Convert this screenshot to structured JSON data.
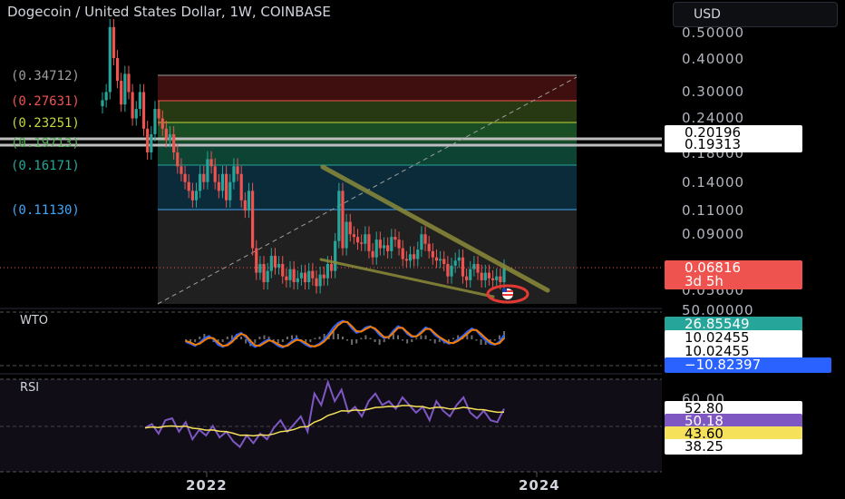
{
  "header": {
    "title": "Dogecoin / United States Dollar, 1W, COINBASE",
    "currency_label": "USD"
  },
  "colors": {
    "bull": "#26a69a",
    "bear": "#ef5350",
    "wto_fast": "#2962ff",
    "wto_slow": "#f57c00",
    "rsi": "#7e57c2",
    "rsi_ma": "#f5e15a",
    "trend": "#8b8b3a"
  },
  "main_axis": {
    "ticks": [
      "0.50000",
      "0.40000",
      "0.30000",
      "0.24000",
      "0.18000",
      "0.14000",
      "0.11000",
      "0.09000",
      "0.05600"
    ],
    "scale": "log",
    "price_boxes": {
      "p1": "0.20196",
      "p2": "0.19313",
      "last_price": "0.06816",
      "countdown": "3d 5h"
    }
  },
  "fib_labels": [
    "(0.34712)",
    "(0.27631)",
    "(0.23251)",
    "(0.19713)",
    "(0.16171)",
    "(0.11130)"
  ],
  "wto": {
    "label": "WTO",
    "ticks": [
      "50.00000"
    ],
    "values": [
      "26.85549",
      "10.02455",
      "10.02455",
      "−10.82397"
    ]
  },
  "rsi": {
    "label": "RSI",
    "ticks": [
      "60.00"
    ],
    "values": [
      "52.80",
      "50.18",
      "43.60",
      "38.25"
    ]
  },
  "x_axis": {
    "labels": [
      "2022",
      "2024"
    ]
  },
  "chart_data": [
    {
      "type": "candlestick",
      "title": "Dogecoin / United States Dollar, 1W, COINBASE",
      "scale": "log",
      "ylim": [
        0.05,
        0.6
      ],
      "fib_levels": [
        0.34712,
        0.27631,
        0.23251,
        0.19713,
        0.16171,
        0.1113
      ],
      "horizontal_lines": [
        0.20196,
        0.19313
      ],
      "last_price": 0.06816,
      "x_ticks": [
        "2022",
        "2024"
      ],
      "close_series_approx": [
        0.28,
        0.3,
        0.52,
        0.4,
        0.33,
        0.27,
        0.35,
        0.3,
        0.24,
        0.26,
        0.3,
        0.22,
        0.18,
        0.21,
        0.26,
        0.24,
        0.22,
        0.2,
        0.21,
        0.18,
        0.16,
        0.15,
        0.14,
        0.13,
        0.12,
        0.13,
        0.15,
        0.14,
        0.17,
        0.16,
        0.14,
        0.13,
        0.15,
        0.12,
        0.14,
        0.16,
        0.15,
        0.12,
        0.11,
        0.13,
        0.08,
        0.065,
        0.07,
        0.06,
        0.066,
        0.075,
        0.068,
        0.07,
        0.063,
        0.061,
        0.067,
        0.06,
        0.062,
        0.065,
        0.06,
        0.066,
        0.062,
        0.058,
        0.064,
        0.062,
        0.07,
        0.066,
        0.085,
        0.13,
        0.08,
        0.1,
        0.09,
        0.088,
        0.084,
        0.083,
        0.09,
        0.078,
        0.074,
        0.086,
        0.08,
        0.082,
        0.078,
        0.088,
        0.086,
        0.08,
        0.073,
        0.072,
        0.076,
        0.073,
        0.079,
        0.09,
        0.083,
        0.078,
        0.074,
        0.072,
        0.073,
        0.07,
        0.063,
        0.069,
        0.072,
        0.074,
        0.063,
        0.061,
        0.067,
        0.07,
        0.065,
        0.061,
        0.065,
        0.062,
        0.061,
        0.063,
        0.06,
        0.068
      ]
    },
    {
      "type": "line",
      "title": "WTO",
      "series": [
        {
          "values": [
            -5,
            -8,
            -12,
            -6,
            2,
            6,
            0,
            -10,
            -14,
            -9,
            -2,
            8,
            12,
            4,
            -8,
            -14,
            -10,
            -4,
            0,
            -6,
            -12,
            -15,
            -10,
            -3,
            2,
            -4,
            -10,
            -14,
            -12,
            -8,
            0,
            10,
            22,
            30,
            34,
            31,
            20,
            12,
            15,
            22,
            24,
            18,
            8,
            2,
            5,
            16,
            24,
            20,
            10,
            4,
            6,
            14,
            22,
            18,
            8,
            2,
            -4,
            -8,
            -6,
            0,
            6,
            14,
            20,
            16,
            6,
            -2,
            -8,
            -10,
            -4,
            8
          ]
        },
        {
          "values": [
            -3,
            -6,
            -10,
            -8,
            -2,
            3,
            2,
            -6,
            -12,
            -11,
            -5,
            4,
            10,
            7,
            -3,
            -11,
            -12,
            -7,
            -2,
            -4,
            -9,
            -13,
            -12,
            -6,
            -1,
            -2,
            -7,
            -12,
            -13,
            -10,
            -4,
            5,
            16,
            26,
            32,
            32,
            24,
            15,
            14,
            19,
            23,
            20,
            12,
            4,
            4,
            12,
            21,
            21,
            13,
            6,
            5,
            11,
            19,
            19,
            11,
            4,
            -1,
            -6,
            -7,
            -3,
            3,
            10,
            17,
            17,
            10,
            2,
            -5,
            -9,
            -7,
            2
          ]
        }
      ],
      "ylim": [
        -20,
        50
      ]
    },
    {
      "type": "line",
      "title": "RSI",
      "series": [
        {
          "values": [
            44,
            46,
            41,
            48,
            49,
            42,
            47,
            38,
            43,
            40,
            45,
            39,
            42,
            37,
            34,
            40,
            36,
            41,
            38,
            44,
            48,
            42,
            46,
            50,
            42,
            62,
            56,
            68,
            58,
            64,
            52,
            55,
            50,
            58,
            62,
            56,
            58,
            54,
            60,
            56,
            52,
            55,
            48,
            58,
            53,
            50,
            56,
            60,
            52,
            49,
            53,
            48,
            47,
            54
          ]
        },
        {
          "values": [
            44,
            44.5,
            44.2,
            44.8,
            45,
            44.6,
            44.9,
            43.8,
            43.5,
            42.8,
            42.9,
            42.2,
            42,
            41.2,
            40.1,
            40.2,
            39.8,
            40.3,
            40.1,
            40.8,
            42,
            42.4,
            43.2,
            44.5,
            44.6,
            47,
            48.4,
            50.5,
            51.6,
            53,
            52.8,
            53.4,
            53.1,
            53.8,
            54.7,
            54.9,
            55.3,
            55.1,
            55.7,
            55.7,
            55.2,
            55.2,
            54.2,
            54.8,
            54.6,
            53.9,
            54.1,
            54.8,
            54.3,
            53.6,
            53.5,
            52.8,
            52.2,
            52.3
          ]
        }
      ],
      "ylim": [
        25,
        70
      ]
    }
  ]
}
